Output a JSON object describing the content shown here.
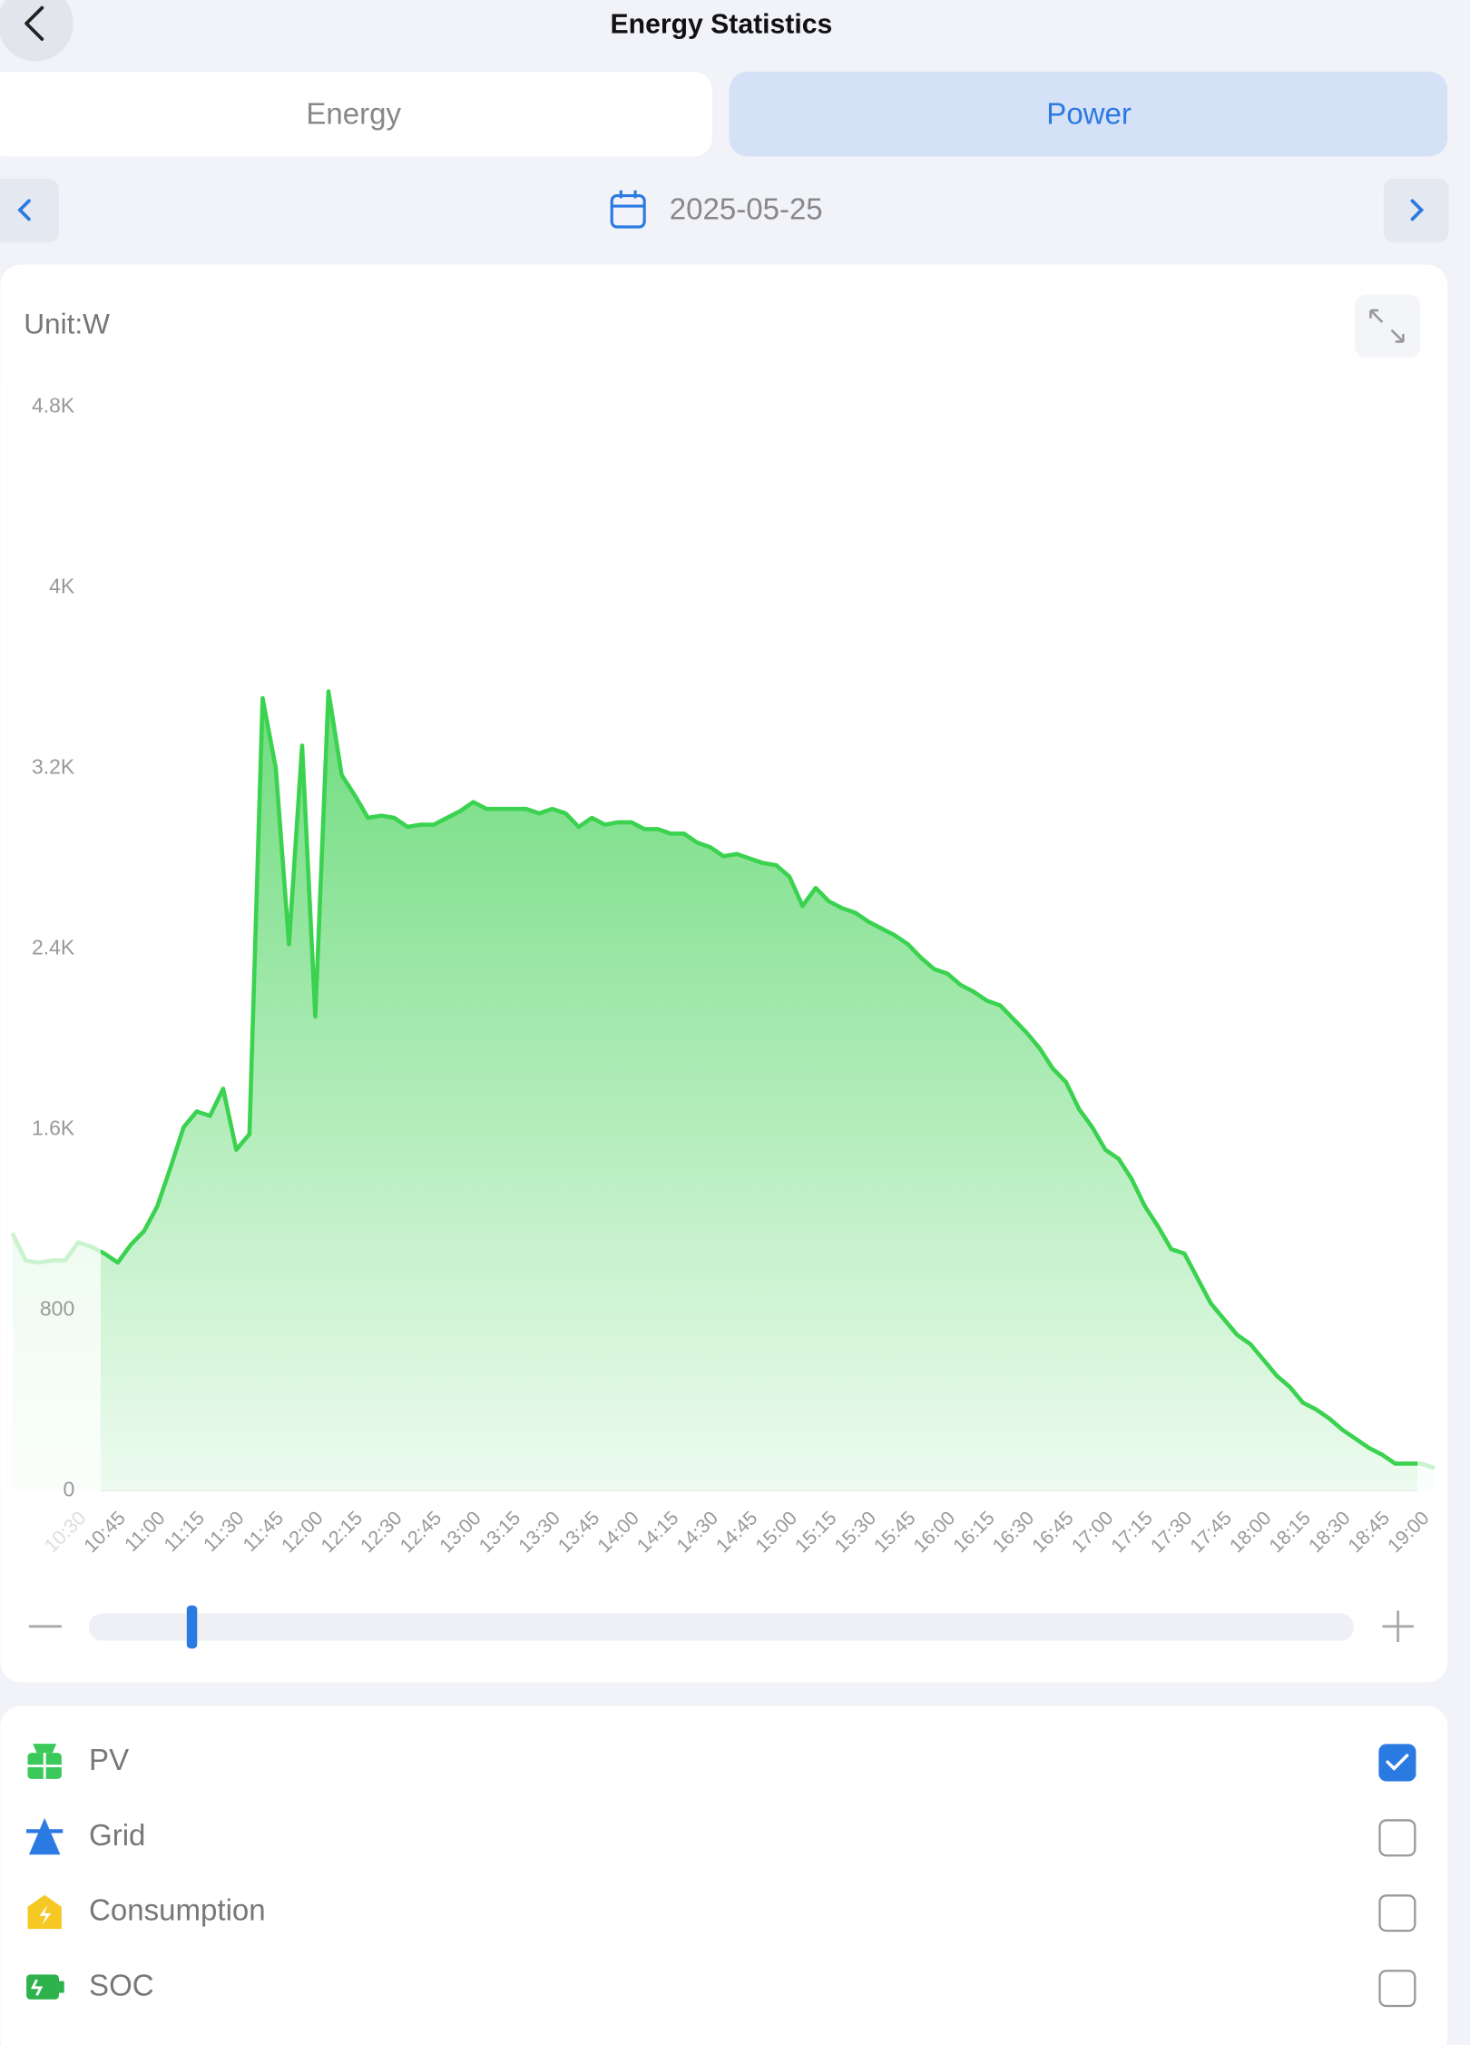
{
  "header": {
    "title": "Energy Statistics"
  },
  "tabs": [
    {
      "label": "Energy",
      "active": false
    },
    {
      "label": "Power",
      "active": true
    }
  ],
  "date": "2025-05-25",
  "chart_data": {
    "type": "area",
    "unit_label": "Unit:W",
    "x": [
      "10:10",
      "10:15",
      "10:20",
      "10:25",
      "10:30",
      "10:35",
      "10:40",
      "10:45",
      "10:50",
      "10:55",
      "11:00",
      "11:05",
      "11:10",
      "11:15",
      "11:20",
      "11:25",
      "11:30",
      "11:35",
      "11:40",
      "11:45",
      "11:50",
      "11:55",
      "12:00",
      "12:05",
      "12:10",
      "12:15",
      "12:20",
      "12:25",
      "12:30",
      "12:35",
      "12:40",
      "12:45",
      "12:50",
      "12:55",
      "13:00",
      "13:05",
      "13:10",
      "13:15",
      "13:20",
      "13:25",
      "13:30",
      "13:35",
      "13:40",
      "13:45",
      "13:50",
      "13:55",
      "14:00",
      "14:05",
      "14:10",
      "14:15",
      "14:20",
      "14:25",
      "14:30",
      "14:35",
      "14:40",
      "14:45",
      "14:50",
      "14:55",
      "15:00",
      "15:05",
      "15:10",
      "15:15",
      "15:20",
      "15:25",
      "15:30",
      "15:35",
      "15:40",
      "15:45",
      "15:50",
      "15:55",
      "16:00",
      "16:05",
      "16:10",
      "16:15",
      "16:20",
      "16:25",
      "16:30",
      "16:35",
      "16:40",
      "16:45",
      "16:50",
      "16:55",
      "17:00",
      "17:05",
      "17:10",
      "17:15",
      "17:20",
      "17:25",
      "17:30",
      "17:35",
      "17:40",
      "17:45",
      "17:50",
      "17:55",
      "18:00",
      "18:05",
      "18:10",
      "18:15",
      "18:20",
      "18:25",
      "18:30",
      "18:35",
      "18:40",
      "18:45",
      "18:50",
      "18:55",
      "19:00",
      "19:05",
      "19:10"
    ],
    "series": [
      {
        "color": "#3ad24f",
        "values": [
          1140,
          1020,
          1010,
          1020,
          1020,
          1100,
          1080,
          1050,
          1010,
          1090,
          1150,
          1260,
          1430,
          1610,
          1680,
          1660,
          1780,
          1510,
          1580,
          3510,
          3200,
          2420,
          3300,
          2100,
          3540,
          3170,
          3080,
          2980,
          2990,
          2980,
          2940,
          2950,
          2950,
          2980,
          3010,
          3050,
          3020,
          3020,
          3020,
          3020,
          3000,
          3020,
          3000,
          2940,
          2980,
          2950,
          2960,
          2960,
          2930,
          2930,
          2910,
          2910,
          2870,
          2850,
          2810,
          2820,
          2800,
          2780,
          2770,
          2720,
          2590,
          2670,
          2610,
          2580,
          2560,
          2520,
          2490,
          2460,
          2420,
          2360,
          2310,
          2290,
          2240,
          2210,
          2170,
          2150,
          2090,
          2030,
          1960,
          1870,
          1810,
          1690,
          1610,
          1510,
          1470,
          1380,
          1260,
          1170,
          1070,
          1050,
          940,
          830,
          760,
          690,
          650,
          580,
          510,
          460,
          390,
          360,
          320,
          270,
          230,
          190,
          160,
          120,
          120,
          120,
          100
        ]
      }
    ],
    "ylim": [
      0,
      4800
    ],
    "yticks": [
      0,
      800,
      {
        "value": 1600,
        "label": "1.6K"
      },
      {
        "value": 2400,
        "label": "2.4K"
      },
      {
        "value": 3200,
        "label": "3.2K"
      },
      {
        "value": 4000,
        "label": "4K"
      },
      {
        "value": 4800,
        "label": "4.8K"
      }
    ],
    "xticks": [
      "10:30",
      "10:45",
      "11:00",
      "11:15",
      "11:30",
      "11:45",
      "12:00",
      "12:15",
      "12:30",
      "12:45",
      "13:00",
      "13:15",
      "13:30",
      "13:45",
      "14:00",
      "14:15",
      "14:30",
      "14:45",
      "15:00",
      "15:15",
      "15:30",
      "15:45",
      "16:00",
      "16:15",
      "16:30",
      "16:45",
      "17:00",
      "17:15",
      "17:30",
      "17:45",
      "18:00",
      "18:15",
      "18:30",
      "18:45",
      "19:00"
    ]
  },
  "selectors": [
    {
      "label": "PV",
      "checked": true
    },
    {
      "label": "Grid",
      "checked": false
    },
    {
      "label": "Consumption",
      "checked": false
    },
    {
      "label": "SOC",
      "checked": false
    }
  ]
}
